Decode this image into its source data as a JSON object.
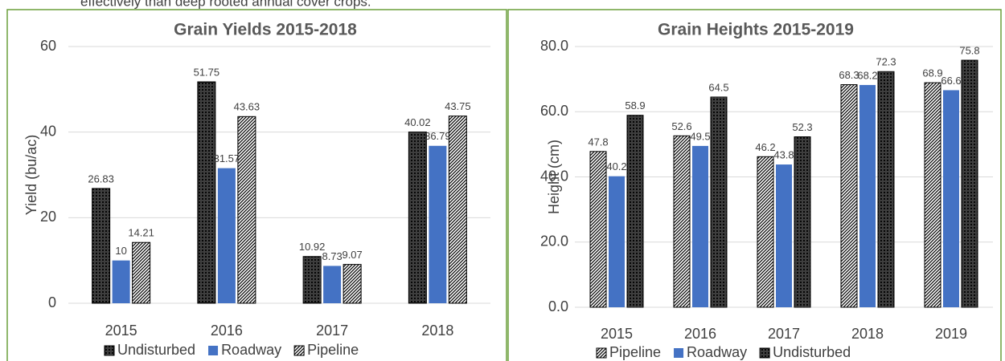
{
  "text_above": "effectively than deep rooted annual cover crops.",
  "chart_data": [
    {
      "type": "bar",
      "title": "Grain Yields 2015-2018",
      "y_label": "Yield (bu/ac)",
      "categories": [
        "2015",
        "2016",
        "2017",
        "2018"
      ],
      "series": [
        {
          "name": "Undisturbed",
          "color": "#000000",
          "pattern": "crosshatch",
          "values": [
            26.83,
            51.75,
            10.92,
            40.02
          ]
        },
        {
          "name": "Roadway",
          "color": "#4472c4",
          "pattern": "solid",
          "values": [
            10,
            31.57,
            8.73,
            36.79
          ]
        },
        {
          "name": "Pipeline",
          "color": "#000000",
          "pattern": "diagonal",
          "values": [
            14.21,
            43.63,
            9.07,
            43.75
          ]
        }
      ],
      "ylim": [
        0,
        60
      ],
      "yticks": [
        0,
        20,
        40,
        60
      ],
      "grid": true,
      "legend": "bottom"
    },
    {
      "type": "bar",
      "title": "Grain Heights 2015-2019",
      "y_label": "Height (cm)",
      "categories": [
        "2015",
        "2016",
        "2017",
        "2018",
        "2019"
      ],
      "series": [
        {
          "name": "Pipeline",
          "color": "#000000",
          "pattern": "diagonal",
          "values": [
            47.8,
            52.6,
            46.2,
            68.3,
            68.9
          ]
        },
        {
          "name": "Roadway",
          "color": "#4472c4",
          "pattern": "solid",
          "values": [
            40.2,
            49.5,
            43.8,
            68.2,
            66.6
          ]
        },
        {
          "name": "Undisturbed",
          "color": "#000000",
          "pattern": "crosshatch",
          "values": [
            58.9,
            64.5,
            52.3,
            72.3,
            75.8
          ]
        }
      ],
      "ylim": [
        0,
        80
      ],
      "yticks": [
        {
          "value": 0,
          "label": "0.0"
        },
        {
          "value": 20,
          "label": "20.0"
        },
        {
          "value": 40,
          "label": "40.0"
        },
        {
          "value": 60,
          "label": "60.0"
        },
        {
          "value": 80,
          "label": "80.0"
        }
      ],
      "grid": true,
      "legend": "bottom"
    }
  ]
}
